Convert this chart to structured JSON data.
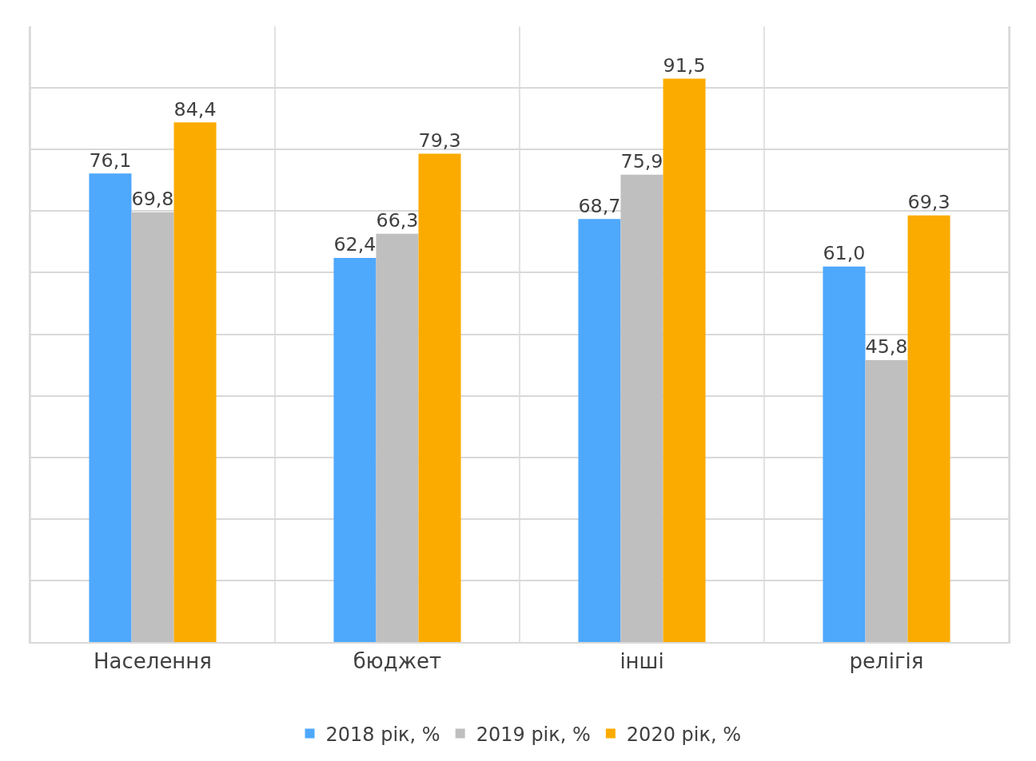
{
  "chart_data": {
    "type": "bar",
    "categories": [
      "Населення",
      "бюджет",
      "інші",
      "релігія"
    ],
    "series": [
      {
        "name": "2018 рік, %",
        "color": "#4ea8fc",
        "values": [
          76.1,
          62.4,
          68.7,
          61.0
        ],
        "value_labels": [
          "76,1",
          "62,4",
          "68,7",
          "61,0"
        ]
      },
      {
        "name": "2019 рік, %",
        "color": "#bfbfbf",
        "values": [
          69.8,
          66.3,
          75.9,
          45.8
        ],
        "value_labels": [
          "69,8",
          "66,3",
          "75,9",
          "45,8"
        ]
      },
      {
        "name": "2020 рік, %",
        "color": "#fbab00",
        "values": [
          84.4,
          79.3,
          91.5,
          69.3
        ],
        "value_labels": [
          "84,4",
          "79,3",
          "91,5",
          "69,3"
        ]
      }
    ],
    "ylim": [
      0,
      100
    ],
    "yticks": [
      {
        "value": 0,
        "label": null
      },
      {
        "value": 10,
        "label": null
      },
      {
        "value": 20,
        "label": null
      },
      {
        "value": 30,
        "label": null
      },
      {
        "value": 40,
        "label": null
      },
      {
        "value": 50,
        "label": null
      },
      {
        "value": 60,
        "label": null
      },
      {
        "value": 70,
        "label": null
      },
      {
        "value": 80,
        "label": null
      },
      {
        "value": 90,
        "label": null
      }
    ],
    "tick_labels": "x",
    "grid": true,
    "legend": "bottom"
  }
}
